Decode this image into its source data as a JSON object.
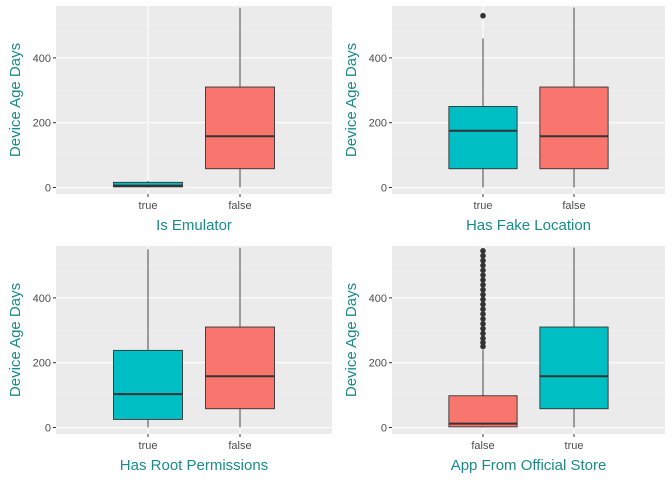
{
  "colors": {
    "panel_bg": "#ebebeb",
    "grid_major": "#ffffff",
    "grid_minor": "#f4f4f4",
    "teal": "#00bfc4",
    "salmon": "#f8766d",
    "outline": "#333333",
    "axis_title": "#1a8a8a",
    "tick_text": "#4d4d4d"
  },
  "chart_data": [
    {
      "type": "box",
      "xlabel": "Is Emulator",
      "ylabel": "Device Age Days",
      "ylim": [
        -20,
        560
      ],
      "yticks": [
        0,
        200,
        400
      ],
      "grid": true,
      "categories": [
        "true",
        "false"
      ],
      "boxes": [
        {
          "category": "true",
          "color": "#00bfc4",
          "min": 0,
          "q1": 2,
          "median": 6,
          "q3": 16,
          "max": 20,
          "outliers": []
        },
        {
          "category": "false",
          "color": "#f8766d",
          "min": 0,
          "q1": 58,
          "median": 158,
          "q3": 310,
          "max": 555,
          "outliers": []
        }
      ]
    },
    {
      "type": "box",
      "xlabel": "Has Fake Location",
      "ylabel": "Device Age Days",
      "ylim": [
        -20,
        560
      ],
      "yticks": [
        0,
        200,
        400
      ],
      "grid": true,
      "categories": [
        "true",
        "false"
      ],
      "boxes": [
        {
          "category": "true",
          "color": "#00bfc4",
          "min": 0,
          "q1": 58,
          "median": 175,
          "q3": 250,
          "max": 460,
          "outliers": [
            530
          ]
        },
        {
          "category": "false",
          "color": "#f8766d",
          "min": 0,
          "q1": 58,
          "median": 158,
          "q3": 310,
          "max": 555,
          "outliers": []
        }
      ]
    },
    {
      "type": "box",
      "xlabel": "Has Root Permissions",
      "ylabel": "Device Age Days",
      "ylim": [
        -20,
        560
      ],
      "yticks": [
        0,
        200,
        400
      ],
      "grid": true,
      "categories": [
        "true",
        "false"
      ],
      "boxes": [
        {
          "category": "true",
          "color": "#00bfc4",
          "min": 0,
          "q1": 25,
          "median": 103,
          "q3": 238,
          "max": 550,
          "outliers": []
        },
        {
          "category": "false",
          "color": "#f8766d",
          "min": 0,
          "q1": 58,
          "median": 158,
          "q3": 310,
          "max": 555,
          "outliers": []
        }
      ]
    },
    {
      "type": "box",
      "xlabel": "App From Official Store",
      "ylabel": "Device Age Days",
      "ylim": [
        -20,
        560
      ],
      "yticks": [
        0,
        200,
        400
      ],
      "grid": true,
      "categories": [
        "false",
        "true"
      ],
      "boxes": [
        {
          "category": "false",
          "color": "#f8766d",
          "min": 0,
          "q1": 2,
          "median": 12,
          "q3": 98,
          "max": 240,
          "outliers": [
            250,
            262,
            275,
            290,
            305,
            320,
            335,
            350,
            365,
            380,
            395,
            410,
            425,
            440,
            455,
            470,
            485,
            500,
            515,
            530,
            545
          ]
        },
        {
          "category": "true",
          "color": "#00bfc4",
          "min": 0,
          "q1": 58,
          "median": 158,
          "q3": 310,
          "max": 555,
          "outliers": []
        }
      ]
    }
  ]
}
